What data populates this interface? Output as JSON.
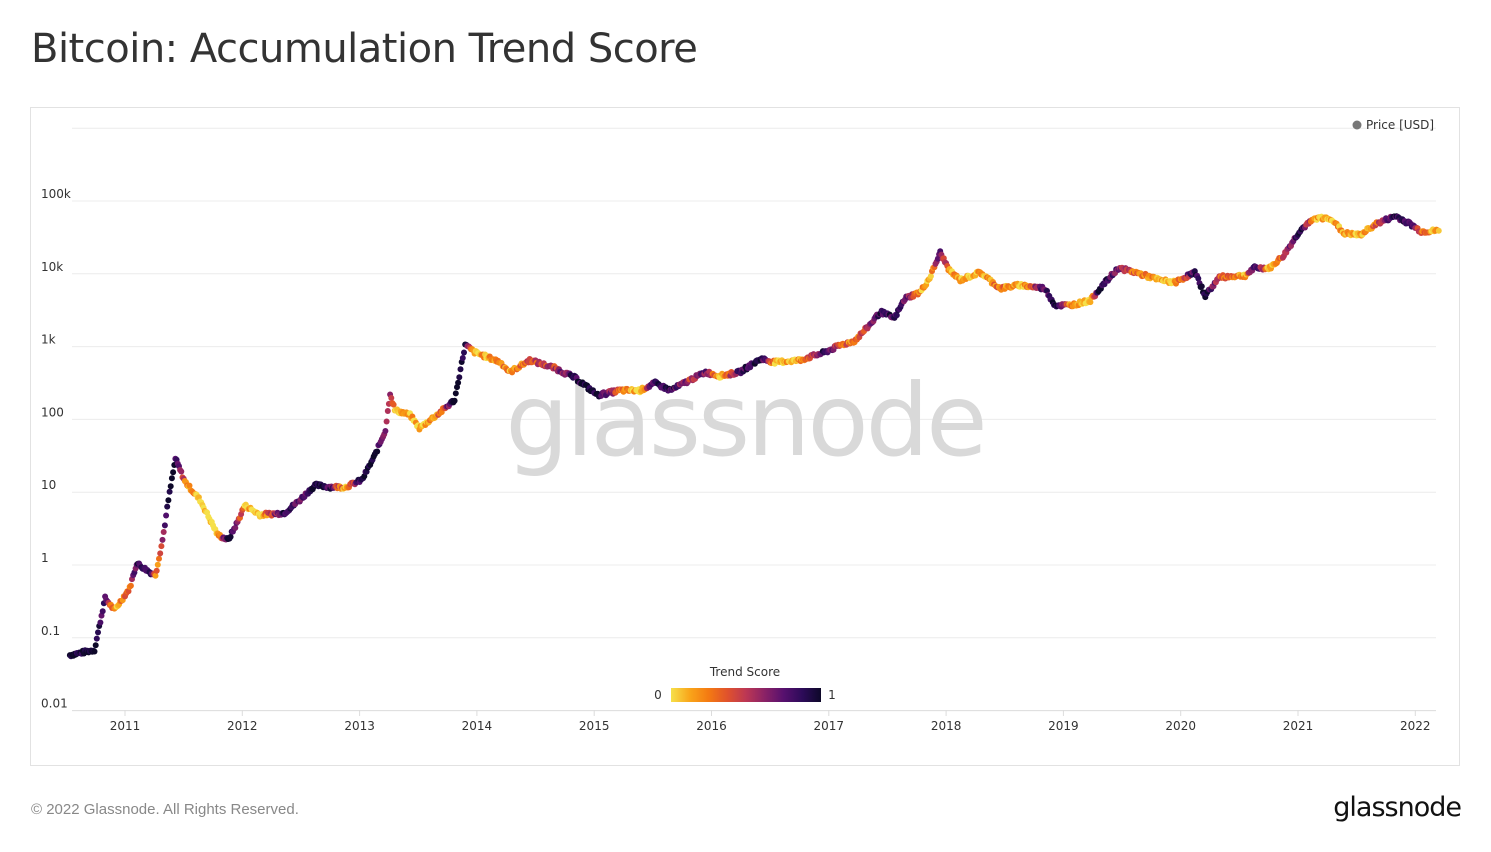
{
  "title": "Bitcoin: Accumulation Trend Score",
  "footer": "© 2022 Glassnode. All Rights Reserved.",
  "logo_text": "glassnode",
  "watermark": "glassnode",
  "chart_data": {
    "type": "scatter",
    "title": "Bitcoin: Accumulation Trend Score",
    "xlabel": "",
    "ylabel": "",
    "y_scale": "log",
    "ylim": [
      0.01,
      1000000
    ],
    "xlim": [
      2010.5,
      2022.25
    ],
    "grid": true,
    "y_ticks": [
      {
        "value": 0.01,
        "label": "0.01"
      },
      {
        "value": 0.1,
        "label": "0.1"
      },
      {
        "value": 1,
        "label": "1"
      },
      {
        "value": 10,
        "label": "10"
      },
      {
        "value": 100,
        "label": "100"
      },
      {
        "value": 1000,
        "label": "1k"
      },
      {
        "value": 10000,
        "label": "10k"
      },
      {
        "value": 100000,
        "label": "100k"
      }
    ],
    "x_ticks": [
      "2011",
      "2012",
      "2013",
      "2014",
      "2015",
      "2016",
      "2017",
      "2018",
      "2019",
      "2020",
      "2021",
      "2022"
    ],
    "legend": {
      "position": "top-right",
      "entries": [
        {
          "name": "Price [USD]",
          "color": "#777777"
        }
      ]
    },
    "colorbar": {
      "title": "Trend Score",
      "min_label": "0",
      "max_label": "1",
      "colors": [
        "#f6e04a",
        "#f9a51a",
        "#f47a12",
        "#e0522c",
        "#bc3754",
        "#8a2266",
        "#57106e",
        "#2d0b59",
        "#0d0829"
      ]
    },
    "series": [
      {
        "name": "Price [USD]",
        "columns": [
          "year",
          "price_usd",
          "trend_score"
        ],
        "points": [
          [
            2010.53,
            0.058,
            1
          ],
          [
            2010.74,
            0.068,
            1
          ],
          [
            2010.83,
            0.35,
            0.8
          ],
          [
            2010.91,
            0.24,
            0.1
          ],
          [
            2011.04,
            0.48,
            0.3
          ],
          [
            2011.1,
            1.06,
            0.9
          ],
          [
            2011.21,
            0.8,
            0.95
          ],
          [
            2011.26,
            0.73,
            0.2
          ],
          [
            2011.32,
            2.2,
            0.5
          ],
          [
            2011.37,
            7.8,
            0.95
          ],
          [
            2011.43,
            29,
            0.9
          ],
          [
            2011.51,
            14,
            0.3
          ],
          [
            2011.64,
            7.8,
            0.05
          ],
          [
            2011.79,
            2.6,
            0.0
          ],
          [
            2011.88,
            2.2,
            1
          ],
          [
            2011.96,
            3.9,
            0.6
          ],
          [
            2012.02,
            6.6,
            0.1
          ],
          [
            2012.15,
            4.9,
            0.05
          ],
          [
            2012.36,
            5.2,
            0.9
          ],
          [
            2012.49,
            7.8,
            0.7
          ],
          [
            2012.62,
            12.5,
            1
          ],
          [
            2012.75,
            11.8,
            0.8
          ],
          [
            2012.88,
            11.8,
            0.1
          ],
          [
            2013.02,
            14.7,
            1
          ],
          [
            2013.13,
            32,
            0.95
          ],
          [
            2013.22,
            71,
            0.7
          ],
          [
            2013.26,
            230,
            0.6
          ],
          [
            2013.3,
            134,
            0.05
          ],
          [
            2013.43,
            115,
            0.1
          ],
          [
            2013.51,
            76,
            0.05
          ],
          [
            2013.69,
            126,
            0.3
          ],
          [
            2013.81,
            185,
            1
          ],
          [
            2013.9,
            1050,
            0.95
          ],
          [
            2013.98,
            840,
            0.05
          ],
          [
            2014.2,
            610,
            0.3
          ],
          [
            2014.28,
            445,
            0.1
          ],
          [
            2014.45,
            650,
            0.4
          ],
          [
            2014.66,
            510,
            0.5
          ],
          [
            2014.84,
            370,
            0.9
          ],
          [
            2015.03,
            215,
            1
          ],
          [
            2015.22,
            250,
            0.3
          ],
          [
            2015.39,
            250,
            0.05
          ],
          [
            2015.52,
            315,
            0.9
          ],
          [
            2015.65,
            250,
            0.9
          ],
          [
            2015.82,
            350,
            0.5
          ],
          [
            2015.95,
            445,
            0.7
          ],
          [
            2016.07,
            395,
            0.05
          ],
          [
            2016.24,
            445,
            0.8
          ],
          [
            2016.42,
            680,
            1
          ],
          [
            2016.54,
            610,
            0.15
          ],
          [
            2016.75,
            650,
            0.1
          ],
          [
            2016.97,
            840,
            0.9
          ],
          [
            2017.1,
            1050,
            0.4
          ],
          [
            2017.22,
            1200,
            0.2
          ],
          [
            2017.35,
            2000,
            0.7
          ],
          [
            2017.44,
            3000,
            0.9
          ],
          [
            2017.56,
            2450,
            0.8
          ],
          [
            2017.65,
            4600,
            0.8
          ],
          [
            2017.78,
            5600,
            0.15
          ],
          [
            2017.86,
            8800,
            0.1
          ],
          [
            2017.95,
            19500,
            0.8
          ],
          [
            2018.03,
            11000,
            0.2
          ],
          [
            2018.12,
            8200,
            0.05
          ],
          [
            2018.29,
            10500,
            0.1
          ],
          [
            2018.46,
            6300,
            0.3
          ],
          [
            2018.63,
            7000,
            0.05
          ],
          [
            2018.84,
            6300,
            0.8
          ],
          [
            2018.93,
            3700,
            1
          ],
          [
            2019.06,
            3700,
            0.2
          ],
          [
            2019.23,
            4300,
            0.05
          ],
          [
            2019.31,
            6300,
            1
          ],
          [
            2019.47,
            12000,
            0.7
          ],
          [
            2019.61,
            10500,
            0.3
          ],
          [
            2019.82,
            8200,
            0.1
          ],
          [
            2019.95,
            7600,
            0.05
          ],
          [
            2020.12,
            10500,
            0.9
          ],
          [
            2020.21,
            5000,
            1
          ],
          [
            2020.33,
            9000,
            0.4
          ],
          [
            2020.55,
            9500,
            0.1
          ],
          [
            2020.63,
            12000,
            0.9
          ],
          [
            2020.76,
            12000,
            0.05
          ],
          [
            2020.88,
            18000,
            0.4
          ],
          [
            2021.02,
            40000,
            0.95
          ],
          [
            2021.15,
            58000,
            0.1
          ],
          [
            2021.28,
            58000,
            0.05
          ],
          [
            2021.39,
            36000,
            0.2
          ],
          [
            2021.53,
            34000,
            0.05
          ],
          [
            2021.66,
            48000,
            0.3
          ],
          [
            2021.83,
            62000,
            0.9
          ],
          [
            2021.96,
            48000,
            0.8
          ],
          [
            2022.05,
            38000,
            0.3
          ],
          [
            2022.2,
            39000,
            0.05
          ]
        ]
      }
    ]
  }
}
